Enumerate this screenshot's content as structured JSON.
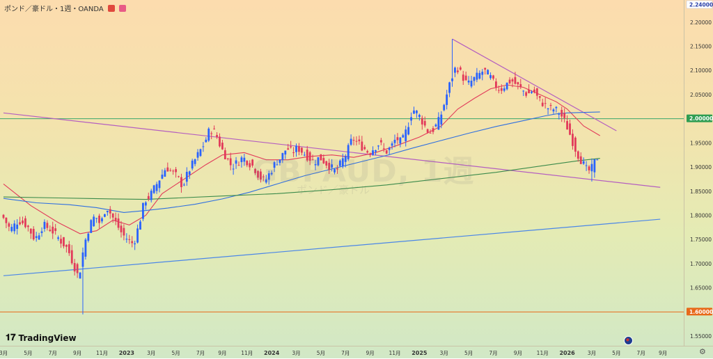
{
  "header": {
    "title": "ポンド／豪ドル・1週・OANDA",
    "flag_colors": [
      "#e0493d",
      "#e85a86"
    ]
  },
  "watermark": {
    "symbol": "GBPAUD, 1週",
    "name": "ポンド／豪ドル"
  },
  "brand": {
    "name": "TradingView",
    "icon": "tradingview-logo-icon"
  },
  "chart_data": {
    "type": "candlestick",
    "timeframe": "1週",
    "ylim": [
      1.53,
      2.24
    ],
    "y_ticks": [
      "2.20000",
      "2.15000",
      "2.10000",
      "2.05000",
      "1.95000",
      "1.90000",
      "1.85000",
      "1.80000",
      "1.75000",
      "1.70000",
      "1.65000",
      "1.55000"
    ],
    "price_labels": [
      {
        "value": 2.24,
        "text": "2.24000",
        "color": "#2a3fa8"
      },
      {
        "value": 2.0,
        "text": "2.00000",
        "color": "#ffffff",
        "bg": "#2e9d52"
      },
      {
        "value": 1.6,
        "text": "1.60000",
        "color": "#ffffff",
        "bg": "#e8691a"
      }
    ],
    "x_ticks": [
      {
        "t": 0,
        "label": "3月"
      },
      {
        "t": 9,
        "label": "5月"
      },
      {
        "t": 18,
        "label": "7月"
      },
      {
        "t": 27,
        "label": "9月"
      },
      {
        "t": 36,
        "label": "11月"
      },
      {
        "t": 45,
        "label": "2023"
      },
      {
        "t": 54,
        "label": "3月"
      },
      {
        "t": 63,
        "label": "5月"
      },
      {
        "t": 72,
        "label": "7月"
      },
      {
        "t": 80,
        "label": "9月"
      },
      {
        "t": 89,
        "label": "11月"
      },
      {
        "t": 98,
        "label": "2024"
      },
      {
        "t": 107,
        "label": "3月"
      },
      {
        "t": 116,
        "label": "5月"
      },
      {
        "t": 125,
        "label": "7月"
      },
      {
        "t": 134,
        "label": "9月"
      },
      {
        "t": 143,
        "label": "11月"
      },
      {
        "t": 152,
        "label": "2025"
      },
      {
        "t": 161,
        "label": "3月"
      },
      {
        "t": 170,
        "label": "5月"
      },
      {
        "t": 179,
        "label": "7月"
      },
      {
        "t": 188,
        "label": "9月"
      },
      {
        "t": 197,
        "label": "11月"
      },
      {
        "t": 206,
        "label": "2026"
      },
      {
        "t": 215,
        "label": "3月"
      },
      {
        "t": 224,
        "label": "5月"
      },
      {
        "t": 233,
        "label": "7月"
      },
      {
        "t": 241,
        "label": "9月"
      }
    ],
    "candle_colors": {
      "up": "#2962ff",
      "down": "#e23a5a"
    },
    "anchors": [
      [
        0,
        1.8
      ],
      [
        3,
        1.77
      ],
      [
        6,
        1.79
      ],
      [
        9,
        1.78
      ],
      [
        12,
        1.75
      ],
      [
        15,
        1.78
      ],
      [
        18,
        1.77
      ],
      [
        21,
        1.75
      ],
      [
        24,
        1.73
      ],
      [
        26,
        1.7
      ],
      [
        28,
        1.67
      ],
      [
        30,
        1.74
      ],
      [
        32,
        1.78
      ],
      [
        34,
        1.8
      ],
      [
        36,
        1.78
      ],
      [
        38,
        1.82
      ],
      [
        40,
        1.8
      ],
      [
        42,
        1.78
      ],
      [
        44,
        1.76
      ],
      [
        46,
        1.75
      ],
      [
        48,
        1.74
      ],
      [
        50,
        1.78
      ],
      [
        52,
        1.83
      ],
      [
        54,
        1.84
      ],
      [
        56,
        1.86
      ],
      [
        58,
        1.88
      ],
      [
        60,
        1.9
      ],
      [
        62,
        1.89
      ],
      [
        64,
        1.88
      ],
      [
        66,
        1.86
      ],
      [
        68,
        1.89
      ],
      [
        70,
        1.91
      ],
      [
        72,
        1.93
      ],
      [
        74,
        1.95
      ],
      [
        76,
        1.98
      ],
      [
        78,
        1.97
      ],
      [
        80,
        1.94
      ],
      [
        82,
        1.92
      ],
      [
        84,
        1.9
      ],
      [
        86,
        1.91
      ],
      [
        88,
        1.92
      ],
      [
        90,
        1.91
      ],
      [
        92,
        1.9
      ],
      [
        94,
        1.88
      ],
      [
        96,
        1.87
      ],
      [
        98,
        1.89
      ],
      [
        100,
        1.91
      ],
      [
        102,
        1.92
      ],
      [
        104,
        1.94
      ],
      [
        106,
        1.93
      ],
      [
        108,
        1.94
      ],
      [
        110,
        1.93
      ],
      [
        112,
        1.92
      ],
      [
        114,
        1.91
      ],
      [
        116,
        1.92
      ],
      [
        118,
        1.91
      ],
      [
        120,
        1.9
      ],
      [
        122,
        1.89
      ],
      [
        124,
        1.91
      ],
      [
        126,
        1.93
      ],
      [
        128,
        1.96
      ],
      [
        130,
        1.95
      ],
      [
        132,
        1.94
      ],
      [
        134,
        1.93
      ],
      [
        136,
        1.94
      ],
      [
        138,
        1.95
      ],
      [
        140,
        1.93
      ],
      [
        142,
        1.94
      ],
      [
        144,
        1.96
      ],
      [
        146,
        1.95
      ],
      [
        148,
        1.98
      ],
      [
        150,
        2.02
      ],
      [
        152,
        2.01
      ],
      [
        154,
        1.99
      ],
      [
        156,
        1.97
      ],
      [
        158,
        1.98
      ],
      [
        160,
        2.0
      ],
      [
        162,
        2.04
      ],
      [
        164,
        2.08
      ],
      [
        166,
        2.11
      ],
      [
        168,
        2.09
      ],
      [
        170,
        2.07
      ],
      [
        172,
        2.08
      ],
      [
        174,
        2.09
      ],
      [
        176,
        2.1
      ],
      [
        178,
        2.09
      ],
      [
        180,
        2.07
      ],
      [
        182,
        2.06
      ],
      [
        184,
        2.07
      ],
      [
        186,
        2.08
      ],
      [
        188,
        2.07
      ],
      [
        190,
        2.06
      ],
      [
        192,
        2.05
      ],
      [
        194,
        2.06
      ],
      [
        196,
        2.04
      ],
      [
        198,
        2.03
      ],
      [
        200,
        2.02
      ],
      [
        202,
        2.02
      ],
      [
        204,
        2.01
      ],
      [
        206,
        1.99
      ],
      [
        208,
        1.96
      ],
      [
        210,
        1.93
      ],
      [
        212,
        1.91
      ],
      [
        214,
        1.89
      ],
      [
        216,
        1.9
      ],
      [
        217,
        1.92
      ]
    ],
    "spikes": [
      {
        "t": 29,
        "low": 1.595
      },
      {
        "t": 164,
        "high": 2.165
      },
      {
        "t": 215,
        "low": 1.87
      }
    ],
    "moving_averages": [
      {
        "color": "#e23a5a",
        "points": [
          [
            0,
            1.865
          ],
          [
            10,
            1.82
          ],
          [
            20,
            1.785
          ],
          [
            28,
            1.762
          ],
          [
            34,
            1.768
          ],
          [
            40,
            1.79
          ],
          [
            46,
            1.78
          ],
          [
            52,
            1.8
          ],
          [
            58,
            1.845
          ],
          [
            66,
            1.875
          ],
          [
            74,
            1.905
          ],
          [
            80,
            1.925
          ],
          [
            88,
            1.93
          ],
          [
            96,
            1.915
          ],
          [
            104,
            1.915
          ],
          [
            112,
            1.922
          ],
          [
            120,
            1.925
          ],
          [
            128,
            1.92
          ],
          [
            136,
            1.93
          ],
          [
            144,
            1.945
          ],
          [
            152,
            1.962
          ],
          [
            160,
            1.985
          ],
          [
            166,
            2.02
          ],
          [
            172,
            2.042
          ],
          [
            178,
            2.062
          ],
          [
            184,
            2.07
          ],
          [
            190,
            2.065
          ],
          [
            196,
            2.05
          ],
          [
            202,
            2.035
          ],
          [
            206,
            2.02
          ],
          [
            212,
            1.985
          ],
          [
            218,
            1.965
          ]
        ]
      },
      {
        "color": "#2f6fe0",
        "points": [
          [
            0,
            1.835
          ],
          [
            12,
            1.826
          ],
          [
            24,
            1.822
          ],
          [
            34,
            1.816
          ],
          [
            44,
            1.806
          ],
          [
            52,
            1.81
          ],
          [
            60,
            1.815
          ],
          [
            70,
            1.823
          ],
          [
            80,
            1.834
          ],
          [
            90,
            1.848
          ],
          [
            100,
            1.865
          ],
          [
            110,
            1.882
          ],
          [
            120,
            1.896
          ],
          [
            130,
            1.91
          ],
          [
            140,
            1.924
          ],
          [
            150,
            1.94
          ],
          [
            160,
            1.955
          ],
          [
            170,
            1.97
          ],
          [
            180,
            1.984
          ],
          [
            190,
            1.996
          ],
          [
            198,
            2.006
          ],
          [
            202,
            2.01
          ],
          [
            206,
            2.012
          ],
          [
            212,
            2.013
          ],
          [
            218,
            2.014
          ]
        ]
      },
      {
        "color": "#3a8a4a",
        "points": [
          [
            0,
            1.838
          ],
          [
            20,
            1.836
          ],
          [
            40,
            1.834
          ],
          [
            52,
            1.833
          ],
          [
            64,
            1.836
          ],
          [
            80,
            1.84
          ],
          [
            100,
            1.845
          ],
          [
            120,
            1.853
          ],
          [
            140,
            1.863
          ],
          [
            160,
            1.876
          ],
          [
            180,
            1.889
          ],
          [
            200,
            1.905
          ],
          [
            210,
            1.913
          ],
          [
            218,
            1.918
          ]
        ]
      }
    ],
    "horizontal_lines": [
      {
        "value": 2.0,
        "color": "#3aa66a"
      },
      {
        "value": 1.6,
        "color": "#e8691a"
      }
    ],
    "trend_lines": [
      {
        "from": [
          0,
          2.012
        ],
        "to": [
          240,
          1.858
        ],
        "color": "#b45ec0"
      },
      {
        "from": [
          164,
          2.165
        ],
        "to": [
          224,
          1.975
        ],
        "color": "#b45ec0"
      },
      {
        "from": [
          0,
          1.675
        ],
        "to": [
          240,
          1.792
        ],
        "color": "#4a86e8"
      }
    ]
  }
}
